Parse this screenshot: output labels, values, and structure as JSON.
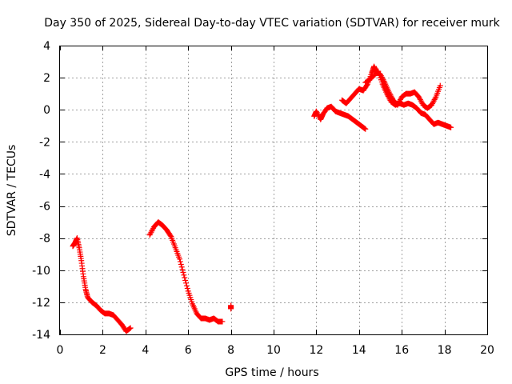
{
  "chart_data": {
    "type": "scatter",
    "title": "Day 350 of 2025, Sidereal Day-to-day VTEC variation (SDTVAR) for receiver murk",
    "xlabel": "GPS time / hours",
    "ylabel": "SDTVAR / TECUs",
    "xlim": [
      0,
      20
    ],
    "ylim": [
      -14,
      4
    ],
    "xticks": [
      0,
      2,
      4,
      6,
      8,
      10,
      12,
      14,
      16,
      18,
      20
    ],
    "yticks": [
      -14,
      -12,
      -10,
      -8,
      -6,
      -4,
      -2,
      0,
      2,
      4
    ],
    "grid": true,
    "marker": "+",
    "color": "#ff0000",
    "series": [
      {
        "name": "segment-1",
        "points": [
          [
            0.6,
            -8.5
          ],
          [
            0.7,
            -8.3
          ],
          [
            0.8,
            -8.0
          ],
          [
            0.9,
            -8.6
          ],
          [
            1.0,
            -9.4
          ],
          [
            1.1,
            -10.4
          ],
          [
            1.2,
            -11.2
          ],
          [
            1.3,
            -11.7
          ],
          [
            1.5,
            -12.0
          ],
          [
            1.7,
            -12.2
          ],
          [
            1.9,
            -12.5
          ],
          [
            2.1,
            -12.7
          ],
          [
            2.3,
            -12.7
          ],
          [
            2.5,
            -12.8
          ],
          [
            2.7,
            -13.1
          ],
          [
            2.9,
            -13.4
          ],
          [
            3.1,
            -13.8
          ],
          [
            3.3,
            -13.6
          ]
        ]
      },
      {
        "name": "segment-2",
        "points": [
          [
            4.2,
            -7.8
          ],
          [
            4.4,
            -7.3
          ],
          [
            4.6,
            -7.0
          ],
          [
            4.8,
            -7.2
          ],
          [
            5.0,
            -7.5
          ],
          [
            5.2,
            -7.9
          ],
          [
            5.4,
            -8.6
          ],
          [
            5.6,
            -9.3
          ],
          [
            5.8,
            -10.3
          ],
          [
            6.0,
            -11.3
          ],
          [
            6.2,
            -12.1
          ],
          [
            6.4,
            -12.7
          ],
          [
            6.6,
            -13.0
          ],
          [
            6.8,
            -13.0
          ],
          [
            7.0,
            -13.1
          ],
          [
            7.2,
            -13.0
          ],
          [
            7.4,
            -13.2
          ],
          [
            7.6,
            -13.2
          ]
        ]
      },
      {
        "name": "segment-3",
        "points": [
          [
            8.0,
            -12.4
          ],
          [
            8.0,
            -12.2
          ]
        ]
      },
      {
        "name": "segment-4",
        "points": [
          [
            11.9,
            -0.4
          ],
          [
            12.0,
            -0.1
          ],
          [
            12.2,
            -0.6
          ],
          [
            12.3,
            -0.3
          ],
          [
            12.5,
            0.1
          ],
          [
            12.7,
            0.2
          ],
          [
            12.9,
            -0.1
          ],
          [
            13.1,
            -0.2
          ],
          [
            13.3,
            -0.3
          ],
          [
            13.5,
            -0.4
          ],
          [
            13.7,
            -0.6
          ],
          [
            13.9,
            -0.8
          ],
          [
            14.1,
            -1.0
          ],
          [
            14.3,
            -1.2
          ]
        ]
      },
      {
        "name": "segment-5",
        "points": [
          [
            13.2,
            0.6
          ],
          [
            13.4,
            0.4
          ],
          [
            13.6,
            0.7
          ],
          [
            13.8,
            1.0
          ],
          [
            14.0,
            1.3
          ],
          [
            14.2,
            1.2
          ],
          [
            14.4,
            1.6
          ],
          [
            14.6,
            2.3
          ],
          [
            14.7,
            2.7
          ],
          [
            14.8,
            2.4
          ],
          [
            15.0,
            2.2
          ],
          [
            15.2,
            1.7
          ],
          [
            15.4,
            1.1
          ],
          [
            15.6,
            0.6
          ],
          [
            15.8,
            0.3
          ],
          [
            16.0,
            0.8
          ],
          [
            16.2,
            1.0
          ],
          [
            16.4,
            1.0
          ],
          [
            16.6,
            1.1
          ],
          [
            16.8,
            0.8
          ],
          [
            17.0,
            0.3
          ],
          [
            17.2,
            0.1
          ],
          [
            17.4,
            0.3
          ],
          [
            17.6,
            0.8
          ],
          [
            17.8,
            1.5
          ]
        ]
      },
      {
        "name": "segment-6",
        "points": [
          [
            14.3,
            1.7
          ],
          [
            14.6,
            2.0
          ],
          [
            14.9,
            2.4
          ],
          [
            15.1,
            1.6
          ],
          [
            15.3,
            1.0
          ],
          [
            15.5,
            0.5
          ],
          [
            15.7,
            0.3
          ],
          [
            15.9,
            0.4
          ],
          [
            16.1,
            0.3
          ],
          [
            16.3,
            0.4
          ],
          [
            16.5,
            0.3
          ],
          [
            16.7,
            0.1
          ],
          [
            16.9,
            -0.2
          ],
          [
            17.1,
            -0.3
          ],
          [
            17.3,
            -0.6
          ],
          [
            17.5,
            -0.9
          ],
          [
            17.7,
            -0.8
          ],
          [
            17.9,
            -0.9
          ],
          [
            18.1,
            -1.0
          ],
          [
            18.3,
            -1.1
          ]
        ]
      }
    ]
  }
}
